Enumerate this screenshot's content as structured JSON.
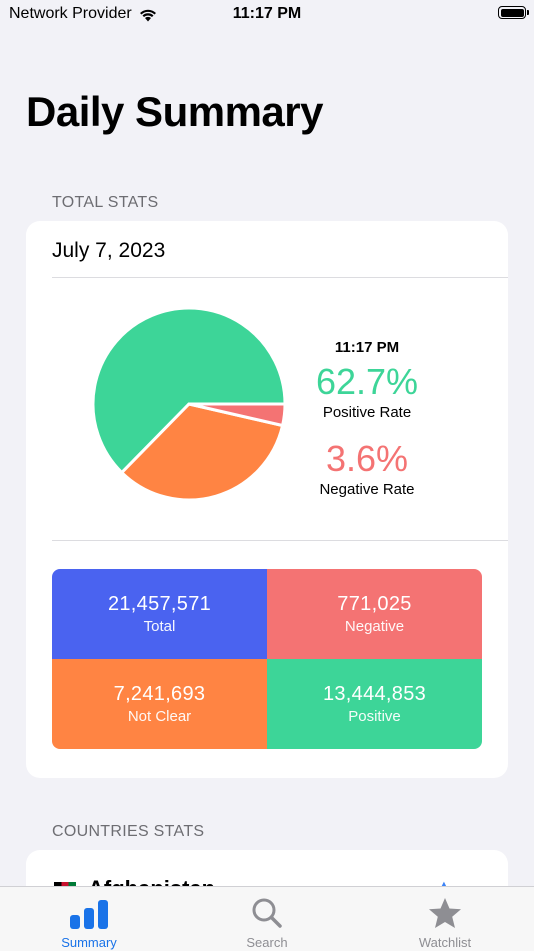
{
  "status_bar": {
    "carrier": "Network Provider",
    "time": "11:17 PM"
  },
  "title": "Daily Summary",
  "total_stats": {
    "header": "TOTAL STATS",
    "date": "July 7, 2023",
    "time": "11:17 PM",
    "positive_rate": "62.7%",
    "positive_rate_label": "Positive Rate",
    "negative_rate": "3.6%",
    "negative_rate_label": "Negative Rate",
    "pie_slices": [
      {
        "name": "Positive",
        "value": 13444853,
        "color": "#3dd598"
      },
      {
        "name": "Not Clear",
        "value": 7241693,
        "color": "#ff8443"
      },
      {
        "name": "Negative",
        "value": 771025,
        "color": "#f47373"
      }
    ],
    "tiles": {
      "total": {
        "value": "21,457,571",
        "label": "Total",
        "color": "#4a63f0"
      },
      "negative": {
        "value": "771,025",
        "label": "Negative",
        "color": "#f47373"
      },
      "not_clear": {
        "value": "7,241,693",
        "label": "Not Clear",
        "color": "#ff8443"
      },
      "positive": {
        "value": "13,444,853",
        "label": "Positive",
        "color": "#3dd598"
      }
    }
  },
  "countries_stats": {
    "header": "COUNTRIES STATS",
    "first_country": "Afghanistan"
  },
  "tabs": [
    {
      "label": "Summary",
      "icon": "chart-bar-icon",
      "active": true
    },
    {
      "label": "Search",
      "icon": "search-icon",
      "active": false
    },
    {
      "label": "Watchlist",
      "icon": "star-icon",
      "active": false
    }
  ],
  "colors": {
    "accent": "#1a73e8",
    "positive": "#3dd598",
    "negative": "#f47373"
  }
}
